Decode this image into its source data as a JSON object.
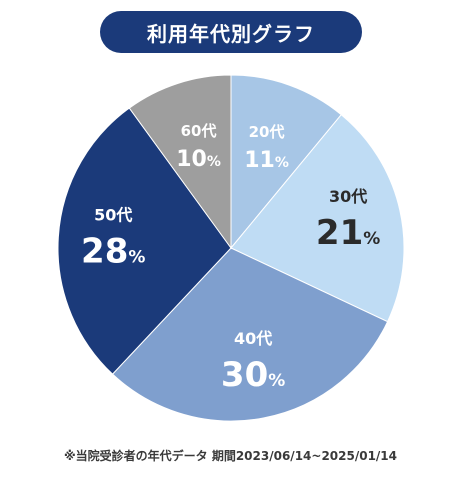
{
  "title": "利用年代別グラフ",
  "footnote": "※当院受診者の年代データ 期間2023/06/14~2025/01/14",
  "chart_data": {
    "type": "pie",
    "title": "利用年代別グラフ",
    "start_angle_deg": 0,
    "direction": "clockwise",
    "slices": [
      {
        "label": "20代",
        "value": 11,
        "value_text": "11",
        "unit": "%",
        "color": "#a7c6e6",
        "text_color": "#ffffff",
        "size": "small"
      },
      {
        "label": "30代",
        "value": 21,
        "value_text": "21",
        "unit": "%",
        "color": "#bfdcf4",
        "text_color": "#2b2b2b",
        "size": "large"
      },
      {
        "label": "40代",
        "value": 30,
        "value_text": "30",
        "unit": "%",
        "color": "#7f9fce",
        "text_color": "#ffffff",
        "size": "large"
      },
      {
        "label": "50代",
        "value": 28,
        "value_text": "28",
        "unit": "%",
        "color": "#1b3a7a",
        "text_color": "#ffffff",
        "size": "large"
      },
      {
        "label": "60代",
        "value": 10,
        "value_text": "10",
        "unit": "%",
        "color": "#9e9e9e",
        "text_color": "#ffffff",
        "size": "small"
      }
    ]
  }
}
